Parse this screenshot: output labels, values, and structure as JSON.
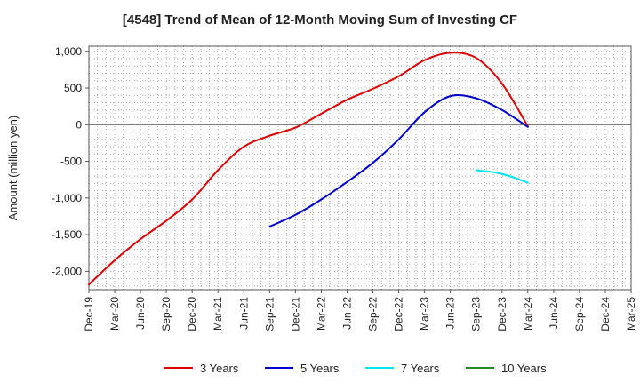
{
  "chart_data": {
    "type": "line",
    "title": "[4548]  Trend of Mean of 12-Month Moving Sum of Investing CF",
    "xlabel": "",
    "ylabel": "Amount (million yen)",
    "ylim": [
      -2250,
      1070
    ],
    "yticks": [
      1000,
      500,
      0,
      -500,
      -1000,
      -1500,
      -2000
    ],
    "ytick_labels": [
      "1,000",
      "500",
      "0",
      "-500",
      "-1,000",
      "-1,500",
      "-2,000"
    ],
    "x_range": [
      "2019-12",
      "2025-03"
    ],
    "xtick_labels": [
      "Dec-19",
      "Mar-20",
      "Jun-20",
      "Sep-20",
      "Dec-20",
      "Mar-21",
      "Jun-21",
      "Sep-21",
      "Dec-21",
      "Mar-22",
      "Jun-22",
      "Sep-22",
      "Dec-22",
      "Mar-23",
      "Jun-23",
      "Sep-23",
      "Dec-23",
      "Mar-24",
      "Jun-24",
      "Sep-24",
      "Dec-24",
      "Mar-25"
    ],
    "grid": true,
    "legend_position": "bottom",
    "series": [
      {
        "name": "3 Years",
        "color": "#dd0000",
        "points": [
          [
            "2019-12",
            -2180
          ],
          [
            "2020-03",
            -1850
          ],
          [
            "2020-06",
            -1560
          ],
          [
            "2020-09",
            -1310
          ],
          [
            "2020-12",
            -1020
          ],
          [
            "2021-03",
            -620
          ],
          [
            "2021-06",
            -300
          ],
          [
            "2021-09",
            -150
          ],
          [
            "2021-12",
            -40
          ],
          [
            "2022-03",
            150
          ],
          [
            "2022-06",
            340
          ],
          [
            "2022-09",
            490
          ],
          [
            "2022-12",
            660
          ],
          [
            "2023-03",
            880
          ],
          [
            "2023-06",
            980
          ],
          [
            "2023-09",
            910
          ],
          [
            "2023-12",
            560
          ],
          [
            "2024-03",
            -20
          ]
        ]
      },
      {
        "name": "5 Years",
        "color": "#0000cc",
        "points": [
          [
            "2021-09",
            -1390
          ],
          [
            "2021-12",
            -1230
          ],
          [
            "2022-03",
            -1020
          ],
          [
            "2022-06",
            -780
          ],
          [
            "2022-09",
            -520
          ],
          [
            "2022-12",
            -200
          ],
          [
            "2023-03",
            170
          ],
          [
            "2023-06",
            390
          ],
          [
            "2023-09",
            360
          ],
          [
            "2023-12",
            200
          ],
          [
            "2024-03",
            -30
          ]
        ]
      },
      {
        "name": "7 Years",
        "color": "#00e5ee",
        "points": [
          [
            "2023-09",
            -620
          ],
          [
            "2023-12",
            -670
          ],
          [
            "2024-03",
            -790
          ]
        ]
      },
      {
        "name": "10 Years",
        "color": "#228b22",
        "points": []
      }
    ]
  }
}
